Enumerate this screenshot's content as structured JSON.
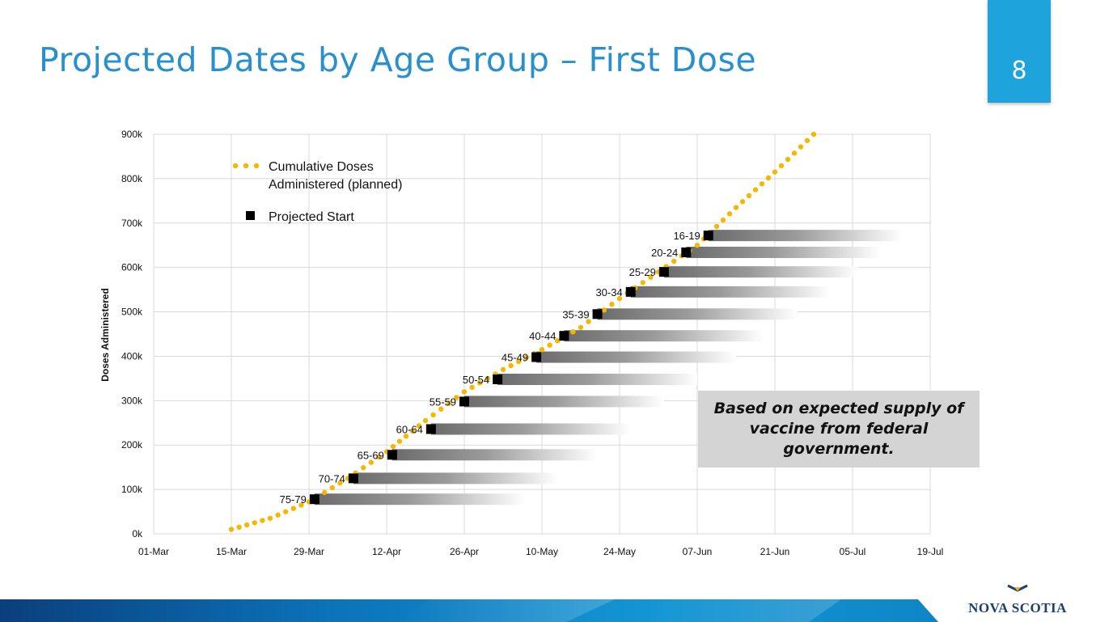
{
  "slide": {
    "title": "Projected Dates by Age Group – First Dose",
    "page_number": "8",
    "note": "Based on expected supply of vaccine from federal government.",
    "logo_text": "NOVA SCOTIA"
  },
  "colors": {
    "title": "#2a8fcd",
    "badge": "#1ea3dc",
    "dots": "#f5b800",
    "start_marker": "#000000",
    "bar_dark": "#6b6b6b",
    "banner": "#0b73b9"
  },
  "chart_data": {
    "type": "scatter",
    "title": "",
    "xlabel": "",
    "ylabel": "Doses Administered",
    "x_ticks": [
      "01-Mar",
      "15-Mar",
      "29-Mar",
      "12-Apr",
      "26-Apr",
      "10-May",
      "24-May",
      "07-Jun",
      "21-Jun",
      "05-Jul",
      "19-Jul"
    ],
    "xlim": [
      "01-Mar",
      "19-Jul"
    ],
    "y_ticks": [
      "0k",
      "100k",
      "200k",
      "300k",
      "400k",
      "500k",
      "600k",
      "700k",
      "800k",
      "900k"
    ],
    "ylim": [
      0,
      900000
    ],
    "grid": true,
    "legend": {
      "placement": "top-left",
      "entries": [
        {
          "label_lines": [
            "Cumulative Doses",
            "Administered (planned)"
          ],
          "marker": "dotted-line"
        },
        {
          "label_lines": [
            "Projected Start"
          ],
          "marker": "square"
        }
      ]
    },
    "series": [
      {
        "name": "Cumulative Doses Administered (planned)",
        "style": "dotted",
        "points": [
          {
            "x": "15-Mar",
            "y": 10000
          },
          {
            "x": "22-Mar",
            "y": 35000
          },
          {
            "x": "29-Mar",
            "y": 72000
          },
          {
            "x": "05-Apr",
            "y": 125000
          },
          {
            "x": "12-Apr",
            "y": 185000
          },
          {
            "x": "19-Apr",
            "y": 255000
          },
          {
            "x": "26-Apr",
            "y": 320000
          },
          {
            "x": "03-May",
            "y": 370000
          },
          {
            "x": "10-May",
            "y": 415000
          },
          {
            "x": "17-May",
            "y": 465000
          },
          {
            "x": "24-May",
            "y": 530000
          },
          {
            "x": "31-May",
            "y": 590000
          },
          {
            "x": "07-Jun",
            "y": 650000
          },
          {
            "x": "14-Jun",
            "y": 735000
          },
          {
            "x": "21-Jun",
            "y": 815000
          },
          {
            "x": "28-Jun",
            "y": 900000
          }
        ]
      },
      {
        "name": "Projected Start",
        "style": "square",
        "points": [
          {
            "label": "75-79",
            "x": "30-Mar",
            "y": 78000,
            "bar_end": "07-May"
          },
          {
            "label": "70-74",
            "x": "06-Apr",
            "y": 125000,
            "bar_end": "13-May"
          },
          {
            "label": "65-69",
            "x": "13-Apr",
            "y": 178000,
            "bar_end": "20-May"
          },
          {
            "label": "60-64",
            "x": "20-Apr",
            "y": 236000,
            "bar_end": "26-May"
          },
          {
            "label": "55-59",
            "x": "26-Apr",
            "y": 298000,
            "bar_end": "01-Jun"
          },
          {
            "label": "50-54",
            "x": "02-May",
            "y": 348000,
            "bar_end": "07-Jun"
          },
          {
            "label": "45-49",
            "x": "09-May",
            "y": 398000,
            "bar_end": "14-Jun"
          },
          {
            "label": "40-44",
            "x": "14-May",
            "y": 446000,
            "bar_end": "19-Jun"
          },
          {
            "label": "35-39",
            "x": "20-May",
            "y": 495000,
            "bar_end": "25-Jun"
          },
          {
            "label": "30-34",
            "x": "26-May",
            "y": 545000,
            "bar_end": "01-Jul"
          },
          {
            "label": "25-29",
            "x": "01-Jun",
            "y": 590000,
            "bar_end": "06-Jul"
          },
          {
            "label": "20-24",
            "x": "05-Jun",
            "y": 634000,
            "bar_end": "10-Jul"
          },
          {
            "label": "16-19",
            "x": "09-Jun",
            "y": 672000,
            "bar_end": "14-Jul"
          }
        ]
      }
    ]
  }
}
